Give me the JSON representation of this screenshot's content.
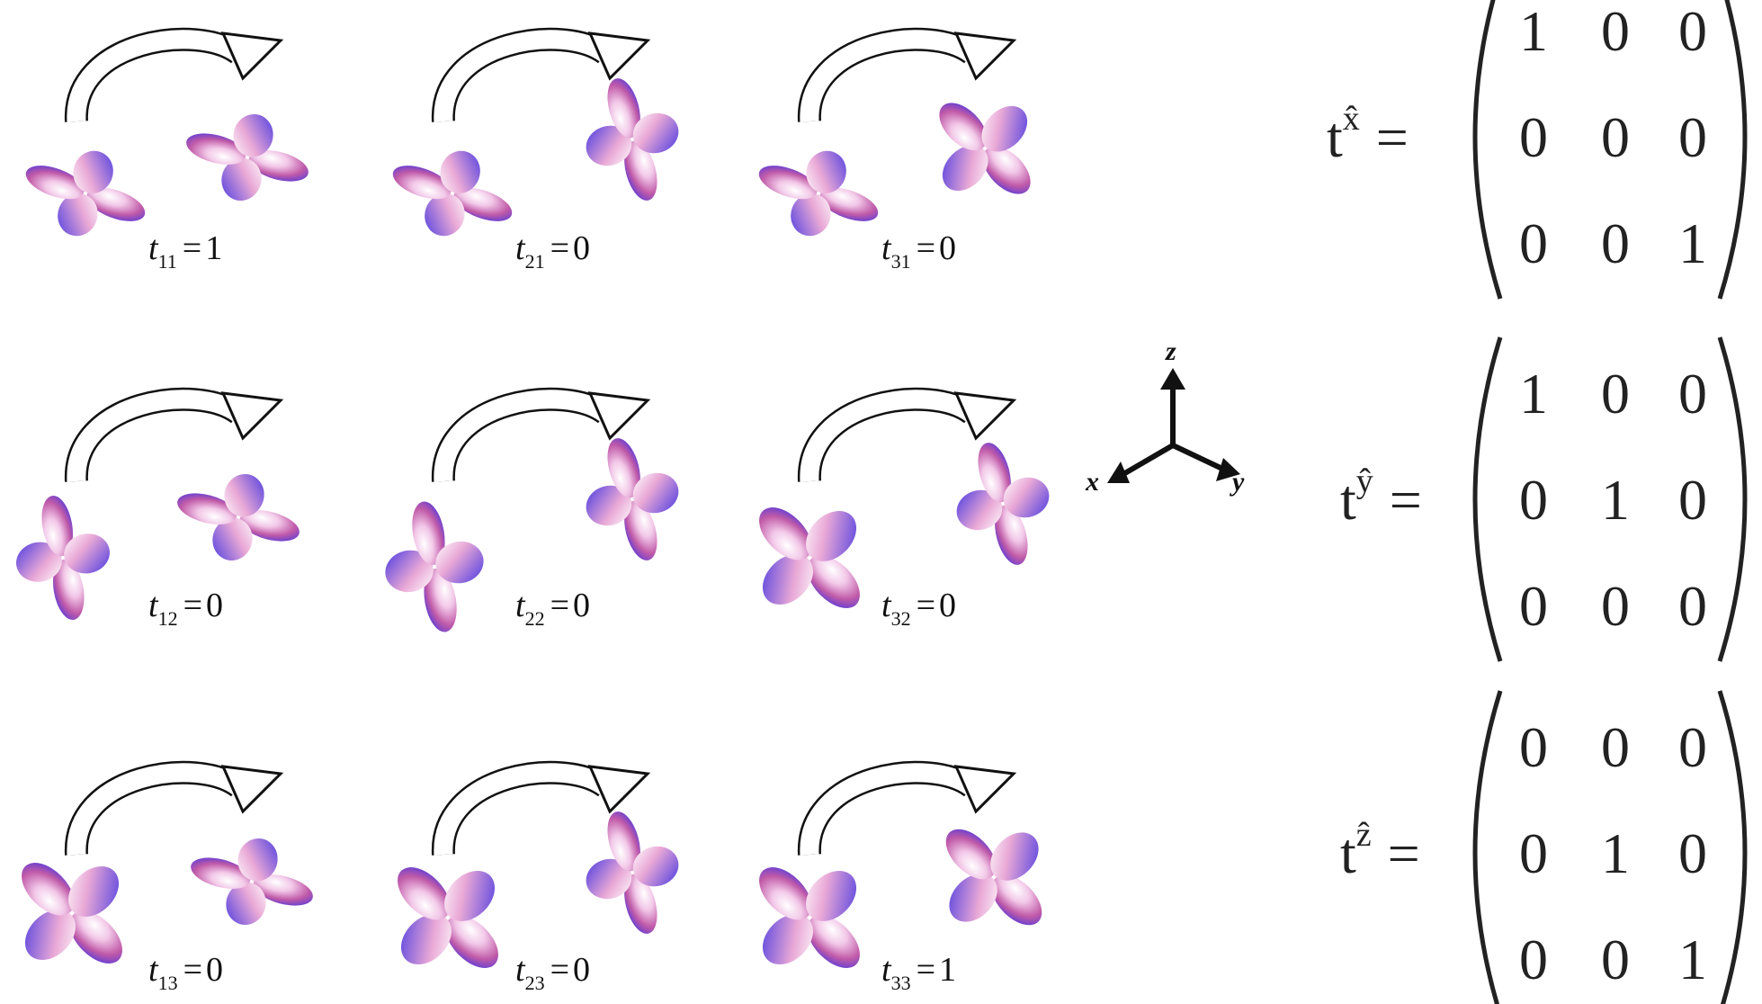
{
  "equals": "=",
  "panels": [
    {
      "symbol": "t",
      "subscript": "11",
      "value": 1
    },
    {
      "symbol": "t",
      "subscript": "21",
      "value": 0
    },
    {
      "symbol": "t",
      "subscript": "31",
      "value": 0
    },
    {
      "symbol": "t",
      "subscript": "12",
      "value": 0
    },
    {
      "symbol": "t",
      "subscript": "22",
      "value": 0
    },
    {
      "symbol": "t",
      "subscript": "32",
      "value": 0
    },
    {
      "symbol": "t",
      "subscript": "13",
      "value": 0
    },
    {
      "symbol": "t",
      "subscript": "23",
      "value": 0
    },
    {
      "symbol": "t",
      "subscript": "33",
      "value": 1
    }
  ],
  "axes": {
    "z": "z",
    "x": "x",
    "y": "y"
  },
  "matrices": [
    {
      "symbol": "t",
      "superscript": "x̂",
      "rows": [
        [
          1,
          0,
          0
        ],
        [
          0,
          0,
          0
        ],
        [
          0,
          0,
          1
        ]
      ]
    },
    {
      "symbol": "t",
      "superscript": "ŷ",
      "rows": [
        [
          1,
          0,
          0
        ],
        [
          0,
          1,
          0
        ],
        [
          0,
          0,
          0
        ]
      ]
    },
    {
      "symbol": "t",
      "superscript": "ẑ",
      "rows": [
        [
          0,
          0,
          0
        ],
        [
          0,
          1,
          0
        ],
        [
          0,
          0,
          1
        ]
      ]
    }
  ]
}
